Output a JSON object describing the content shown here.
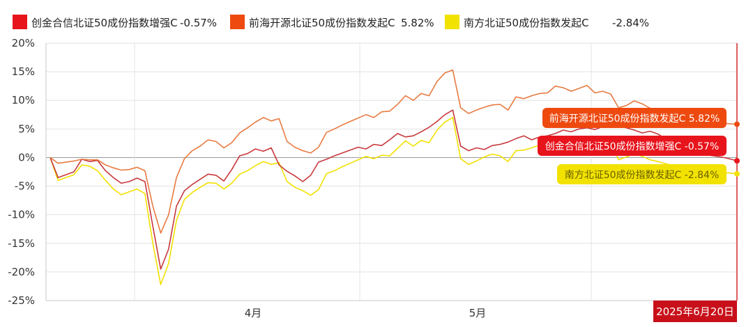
{
  "chart_data": {
    "type": "line",
    "xlabel": "",
    "ylabel": "",
    "ylim": [
      -25,
      20
    ],
    "yticks": [
      20,
      15,
      10,
      5,
      0,
      -5,
      -10,
      -15,
      -20,
      -25
    ],
    "ytick_labels": [
      "20%",
      "15%",
      "10%",
      "5%",
      "0%",
      "-5%",
      "-10%",
      "-15%",
      "-20%",
      "-25%"
    ],
    "xticks": [
      {
        "label": "4月",
        "x": 24
      },
      {
        "label": "5月",
        "x": 50
      }
    ],
    "date_badge": "2025年6月20日",
    "series": [
      {
        "name": "创金合信北证50成份指数增强C",
        "legend_value": "-0.57%",
        "tooltip": "创金合信北证50成份指数增强C -0.57%",
        "color": "#e8141c",
        "line_color": "#c8383c",
        "x": [
          0,
          1,
          3,
          4,
          5,
          6,
          7,
          8,
          9,
          10,
          11,
          12,
          13,
          14,
          15,
          16,
          17,
          18,
          19,
          20,
          21,
          22,
          23,
          24,
          25,
          26,
          27,
          28,
          29,
          30,
          31,
          32,
          33,
          34,
          35,
          36,
          37,
          38,
          39,
          40,
          41,
          42,
          43,
          44,
          45,
          46,
          47,
          48,
          49,
          50,
          51,
          52,
          53,
          54,
          55,
          56,
          57,
          58,
          59,
          60,
          61,
          62,
          63,
          64,
          65,
          66,
          67,
          68,
          69,
          70,
          71,
          72,
          73,
          74,
          75,
          76,
          77,
          78,
          79,
          80,
          81,
          82,
          83,
          84,
          85,
          86,
          87
        ],
        "values": [
          0,
          -3.5,
          -2.5,
          -0.3,
          -0.7,
          -0.5,
          -2.3,
          -3.5,
          -4.5,
          -4.2,
          -3.6,
          -4.2,
          -12,
          -19.5,
          -16,
          -8.5,
          -5.8,
          -4.7,
          -3.8,
          -2.9,
          -3.1,
          -4.1,
          -2.1,
          0.3,
          0.7,
          1.5,
          1.1,
          1.7,
          -1.3,
          -2.4,
          -3.2,
          -4.2,
          -3.1,
          -0.8,
          -0.3,
          0.3,
          0.8,
          1.3,
          1.8,
          1.5,
          2.3,
          2.1,
          3.1,
          4.2,
          3.6,
          3.8,
          4.5,
          5.3,
          6.3,
          7.5,
          8.3,
          2,
          1.2,
          1.7,
          1.4,
          2.1,
          2.3,
          2.7,
          3.3,
          3.8,
          3.1,
          3.6,
          3.8,
          4.2,
          4.8,
          4.5,
          5,
          5.2,
          4.9,
          5.4,
          5.8,
          5.5,
          5.2,
          4.8,
          4.3,
          4.6,
          4.1,
          3.2,
          2.5,
          1.8,
          1.2,
          0.8,
          0.5,
          0.3,
          0.1,
          -0.2,
          -0.57
        ]
      },
      {
        "name": "前海开源北证50成份指数发起C",
        "legend_value": "5.82%",
        "tooltip": "前海开源北证50成份指数发起C 5.82%",
        "color": "#ee4a10",
        "line_color": "#e87a40",
        "x": [
          0,
          1,
          3,
          4,
          5,
          6,
          7,
          8,
          9,
          10,
          11,
          12,
          13,
          14,
          15,
          16,
          17,
          18,
          19,
          20,
          21,
          22,
          23,
          24,
          25,
          26,
          27,
          28,
          29,
          30,
          31,
          32,
          33,
          34,
          35,
          36,
          37,
          38,
          39,
          40,
          41,
          42,
          43,
          44,
          45,
          46,
          47,
          48,
          49,
          50,
          51,
          52,
          53,
          54,
          55,
          56,
          57,
          58,
          59,
          60,
          61,
          62,
          63,
          64,
          65,
          66,
          67,
          68,
          69,
          70,
          71,
          72,
          73,
          74,
          75,
          76,
          77,
          78,
          79,
          80,
          81,
          82,
          83,
          84,
          85,
          86,
          87
        ],
        "values": [
          0,
          -1,
          -0.6,
          -0.3,
          -0.4,
          -0.4,
          -1.3,
          -1.8,
          -2.2,
          -2.1,
          -1.7,
          -2.3,
          -8.5,
          -13.2,
          -10,
          -3.5,
          -0.2,
          1.2,
          2,
          3.1,
          2.8,
          1.7,
          2.6,
          4.3,
          5.2,
          6.2,
          7,
          6.4,
          6.8,
          2.8,
          1.8,
          1.2,
          0.8,
          1.8,
          4.4,
          5,
          5.7,
          6.3,
          6.9,
          7.5,
          7,
          8,
          8.1,
          9.3,
          10.8,
          10,
          11.2,
          10.8,
          13.3,
          14.8,
          15.3,
          8.7,
          7.7,
          8.3,
          8.8,
          9.2,
          9.3,
          8.3,
          10.6,
          10.3,
          10.8,
          11.2,
          11.3,
          12.5,
          12.2,
          11.6,
          12.1,
          12.6,
          11.3,
          11.6,
          11.1,
          8.7,
          9.1,
          9.9,
          9.4,
          8.6,
          8.1,
          7.6,
          7.3,
          7.1,
          6.9,
          6.7,
          6.5,
          6.3,
          6.1,
          5.9,
          5.82
        ]
      },
      {
        "name": "南方北证50成份指数发起C",
        "legend_value": "-2.84%",
        "tooltip": "南方北证50成份指数发起C -2.84%",
        "color": "#f2e200",
        "line_color": "#f2e000",
        "x": [
          0,
          1,
          3,
          4,
          5,
          6,
          7,
          8,
          9,
          10,
          11,
          12,
          13,
          14,
          15,
          16,
          17,
          18,
          19,
          20,
          21,
          22,
          23,
          24,
          25,
          26,
          27,
          28,
          29,
          30,
          31,
          32,
          33,
          34,
          35,
          36,
          37,
          38,
          39,
          40,
          41,
          42,
          43,
          44,
          45,
          46,
          47,
          48,
          49,
          50,
          51,
          52,
          53,
          54,
          55,
          56,
          57,
          58,
          59,
          60,
          61,
          62,
          63,
          64,
          65,
          66,
          67,
          68,
          69,
          70,
          71,
          72,
          73,
          74,
          75,
          76,
          77,
          78,
          79,
          80,
          81,
          82,
          83,
          84,
          85,
          86,
          87
        ],
        "values": [
          0,
          -4,
          -3,
          -1.3,
          -1.5,
          -2.3,
          -4,
          -5.5,
          -6.5,
          -6,
          -5.5,
          -6.3,
          -15,
          -22.2,
          -18.5,
          -11,
          -7.3,
          -6.1,
          -5.2,
          -4.4,
          -4.5,
          -5.5,
          -4.5,
          -2.9,
          -2.3,
          -1.4,
          -0.7,
          -1.2,
          -0.9,
          -4.2,
          -5.2,
          -5.8,
          -6.6,
          -5.6,
          -2.8,
          -2.3,
          -1.6,
          -1,
          -0.4,
          0.2,
          -0.2,
          0.4,
          0.3,
          1.6,
          2.9,
          2,
          3,
          2.6,
          4.8,
          6.2,
          7,
          -0.2,
          -1.2,
          -0.6,
          0.1,
          0.6,
          0.3,
          -0.7,
          1.2,
          1.3,
          1.7,
          2.2,
          2.5,
          3.1,
          2.9,
          2.6,
          3.2,
          3.4,
          2.7,
          3.1,
          2.8,
          -0.4,
          0.1,
          0.7,
          0.2,
          -0.4,
          -0.7,
          -1.1,
          -1.4,
          -1.7,
          -1.9,
          -2.1,
          -2.3,
          -2.5,
          -2.6,
          -2.7,
          -2.84
        ]
      }
    ]
  }
}
